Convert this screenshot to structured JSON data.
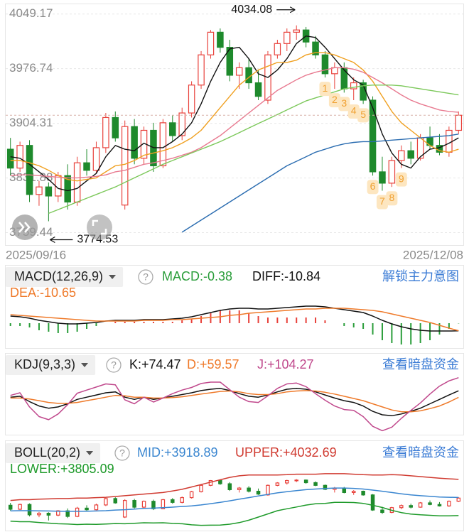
{
  "chart_data": [
    {
      "type": "candlestick",
      "categories": [
        "2025/09/16",
        null,
        null,
        null,
        null,
        null,
        null,
        null,
        null,
        null,
        null,
        null,
        null,
        null,
        null,
        null,
        null,
        null,
        null,
        null,
        null,
        null,
        null,
        null,
        null,
        null,
        null,
        null,
        null,
        null,
        null,
        null,
        null,
        null,
        null,
        null,
        null,
        null,
        null,
        null,
        null,
        null,
        null,
        null,
        null,
        null,
        null,
        "2025/12/08"
      ],
      "ylim": [
        3743,
        4063
      ],
      "yticks": [
        4049.17,
        3976.74,
        3904.31,
        3831.88,
        3759.44
      ],
      "grid": true,
      "up_color": "#e8403a",
      "down_color": "#1e8a2c",
      "open": [
        3870,
        3845,
        3875,
        3810,
        3820,
        3808,
        3835,
        3800,
        3852,
        3842,
        3872,
        3912,
        3796,
        3900,
        3858,
        3895,
        3848,
        3905,
        3888,
        3918,
        3955,
        3995,
        4025,
        4005,
        3968,
        3978,
        3958,
        3935,
        3995,
        4010,
        4025,
        4028,
        4012,
        3995,
        3970,
        3978,
        3950,
        3958,
        3935,
        3840,
        3825,
        3855,
        3868,
        3858,
        3885,
        3875,
        3866,
        3895
      ],
      "high": [
        3885,
        3880,
        3882,
        3828,
        3826,
        3840,
        3850,
        3860,
        3870,
        3880,
        3918,
        3920,
        3908,
        3910,
        3900,
        3905,
        3910,
        3915,
        3925,
        3960,
        4000,
        4028,
        4030,
        4015,
        3985,
        3990,
        3975,
        4000,
        4015,
        4030,
        4034.08,
        4032,
        4020,
        4000,
        3985,
        3985,
        3965,
        3962,
        3940,
        3860,
        3860,
        3875,
        3880,
        3890,
        3900,
        3890,
        3900,
        3920
      ],
      "low": [
        3835,
        3840,
        3800,
        3795,
        3774.53,
        3800,
        3790,
        3795,
        3835,
        3838,
        3865,
        3880,
        3790,
        3850,
        3850,
        3840,
        3845,
        3880,
        3882,
        3912,
        3950,
        3990,
        3998,
        3960,
        3950,
        3950,
        3935,
        3930,
        3990,
        4000,
        4015,
        4005,
        3990,
        3965,
        3950,
        3945,
        3935,
        3930,
        3835,
        3815,
        3820,
        3845,
        3850,
        3855,
        3870,
        3862,
        3860,
        3890
      ],
      "close": [
        3845,
        3875,
        3810,
        3820,
        3808,
        3835,
        3800,
        3852,
        3842,
        3872,
        3912,
        3885,
        3900,
        3858,
        3895,
        3848,
        3905,
        3888,
        3918,
        3955,
        3995,
        4025,
        4005,
        3968,
        3978,
        3958,
        3940,
        3995,
        4010,
        4025,
        4028,
        4012,
        3995,
        3970,
        3978,
        3950,
        3958,
        3935,
        3840,
        3825,
        3855,
        3868,
        3858,
        3885,
        3875,
        3866,
        3895,
        3915
      ],
      "lines": [
        {
          "color": "#111111",
          "values": [
            3860,
            3858,
            3850,
            3840,
            3830,
            3818,
            3815,
            3818,
            3828,
            3838,
            3860,
            3875,
            3870,
            3868,
            3878,
            3872,
            3872,
            3880,
            3890,
            3905,
            3930,
            3960,
            3985,
            4003,
            4005,
            3990,
            3970,
            3965,
            3975,
            3990,
            4010,
            4020,
            4018,
            4005,
            3990,
            3975,
            3962,
            3955,
            3925,
            3890,
            3865,
            3850,
            3845,
            3860,
            3870,
            3872,
            3878,
            3885
          ]
        },
        {
          "color": "#f0a020",
          "values": [
            3855,
            3855,
            3852,
            3848,
            3842,
            3835,
            3830,
            3828,
            3830,
            3832,
            3840,
            3848,
            3850,
            3855,
            3862,
            3865,
            3868,
            3872,
            3878,
            3885,
            3895,
            3910,
            3925,
            3940,
            3955,
            3965,
            3975,
            3980,
            3985,
            3985,
            3988,
            3995,
            3998,
            3998,
            3995,
            3990,
            3985,
            3975,
            3960,
            3940,
            3920,
            3905,
            3895,
            3885,
            3875,
            3868,
            3866,
            3870
          ]
        },
        {
          "color": "#e87a90",
          "values": [
            3835,
            3836,
            3836,
            3835,
            3834,
            3833,
            3832,
            3832,
            3833,
            3834,
            3836,
            3840,
            3842,
            3846,
            3850,
            3852,
            3855,
            3858,
            3862,
            3866,
            3872,
            3880,
            3888,
            3898,
            3908,
            3918,
            3928,
            3938,
            3948,
            3955,
            3962,
            3968,
            3972,
            3975,
            3978,
            3978,
            3976,
            3972,
            3965,
            3958,
            3950,
            3942,
            3935,
            3930,
            3926,
            3922,
            3920,
            3918.89
          ]
        },
        {
          "color": "#7cc85a",
          "values": [
            null,
            null,
            null,
            null,
            3785,
            3790,
            3795,
            3800,
            3805,
            3810,
            3815,
            3820,
            3826,
            3832,
            3838,
            3844,
            3850,
            3855,
            3860,
            3865,
            3870,
            3875,
            3880,
            3886,
            3892,
            3898,
            3904,
            3910,
            3916,
            3922,
            3928,
            3934,
            3938,
            3942,
            3946,
            3950,
            3952,
            3954,
            3955,
            3955,
            3955,
            3954,
            3952,
            3950,
            3948,
            3946,
            3944,
            3942
          ]
        },
        {
          "color": "#2a6cb0",
          "values": [
            null,
            null,
            null,
            null,
            null,
            null,
            null,
            null,
            null,
            null,
            null,
            null,
            null,
            null,
            null,
            null,
            null,
            null,
            3760,
            3768,
            3776,
            3784,
            3792,
            3800,
            3808,
            3816,
            3824,
            3832,
            3840,
            3848,
            3854,
            3860,
            3866,
            3870,
            3874,
            3877,
            3879,
            3880,
            3880,
            3881,
            3882,
            3883,
            3884,
            3885,
            3886,
            3887,
            3888,
            3890
          ]
        }
      ],
      "td_color": "#f0a030",
      "td_labels": [
        null,
        null,
        null,
        null,
        null,
        null,
        null,
        null,
        null,
        null,
        null,
        null,
        null,
        null,
        null,
        null,
        null,
        null,
        null,
        null,
        null,
        null,
        null,
        null,
        null,
        null,
        null,
        null,
        null,
        null,
        null,
        null,
        null,
        "1",
        "2",
        "3",
        "4",
        "5",
        "6",
        "7",
        "8",
        "9",
        null,
        null,
        null,
        null,
        null,
        null
      ]
    },
    {
      "type": "macd",
      "title": "MACD(12,26,9)",
      "help": "?",
      "link": "解锁主力意图",
      "ylim": [
        -35,
        55
      ],
      "series": [
        {
          "name": "MACD:-0.38",
          "color": "#2a9d3a",
          "up_color": "#e8403a",
          "style": "bar",
          "values": [
            -4,
            -4,
            -6,
            -10,
            -12,
            -14,
            -14,
            -12,
            -8,
            -4,
            0,
            2,
            2,
            2,
            2,
            2,
            2,
            2,
            4,
            6,
            10,
            14,
            18,
            18,
            18,
            14,
            10,
            8,
            8,
            8,
            8,
            8,
            8,
            4,
            0,
            -4,
            -6,
            -8,
            -16,
            -24,
            -28,
            -30,
            -30,
            -28,
            -24,
            -16,
            -8,
            -0.38
          ]
        },
        {
          "name": "DIFF:-10.84",
          "color": "#111111",
          "style": "line",
          "values": [
            10,
            9,
            7,
            4,
            2,
            0,
            -1,
            -1,
            0,
            1,
            3,
            4,
            4,
            4,
            5,
            5,
            5,
            6,
            7,
            9,
            12,
            15,
            18,
            20,
            21,
            21,
            20,
            20,
            21,
            22,
            23,
            24,
            24,
            23,
            21,
            19,
            17,
            15,
            10,
            4,
            -1,
            -5,
            -8,
            -10,
            -11,
            -11,
            -11,
            -10.84
          ]
        },
        {
          "name": "DEA:-10.65",
          "color": "#ef7a2a",
          "style": "line",
          "values": [
            12,
            11,
            10,
            9,
            8,
            7,
            6,
            5,
            4,
            3,
            3,
            3,
            3,
            3,
            4,
            4,
            4,
            5,
            5,
            6,
            7,
            8,
            9,
            11,
            12,
            14,
            15,
            16,
            17,
            18,
            19,
            20,
            20,
            21,
            21,
            21,
            20,
            19,
            18,
            16,
            13,
            10,
            7,
            4,
            1,
            -3,
            -7,
            -10.65
          ]
        }
      ]
    },
    {
      "type": "kdj",
      "title": "KDJ(9,3,3)",
      "help": "?",
      "link": "查看暗盘资金",
      "ylim": [
        -25,
        115
      ],
      "series": [
        {
          "name": "K:+74.47",
          "color": "#111111",
          "style": "line",
          "values": [
            60,
            62,
            50,
            40,
            35,
            38,
            45,
            55,
            60,
            65,
            70,
            72,
            60,
            55,
            60,
            55,
            58,
            62,
            66,
            70,
            75,
            78,
            80,
            75,
            68,
            62,
            60,
            65,
            72,
            78,
            80,
            78,
            72,
            65,
            58,
            52,
            48,
            40,
            28,
            20,
            18,
            22,
            28,
            35,
            45,
            55,
            65,
            74.47
          ]
        },
        {
          "name": "D:+59.57",
          "color": "#ef7a2a",
          "style": "line",
          "values": [
            58,
            58,
            56,
            52,
            48,
            46,
            46,
            48,
            52,
            56,
            60,
            64,
            63,
            60,
            60,
            58,
            58,
            59,
            61,
            64,
            67,
            70,
            73,
            74,
            72,
            68,
            66,
            66,
            68,
            72,
            74,
            75,
            74,
            71,
            67,
            62,
            57,
            52,
            45,
            38,
            31,
            27,
            27,
            29,
            34,
            40,
            49,
            59.57
          ]
        },
        {
          "name": "J:+104.27",
          "color": "#c0488c",
          "style": "line",
          "values": [
            64,
            70,
            38,
            16,
            9,
            22,
            43,
            69,
            76,
            83,
            90,
            88,
            54,
            45,
            60,
            49,
            58,
            68,
            76,
            82,
            91,
            94,
            94,
            77,
            60,
            50,
            48,
            63,
            80,
            90,
            92,
            84,
            68,
            53,
            40,
            32,
            30,
            16,
            -6,
            -16,
            -8,
            12,
            30,
            47,
            67,
            85,
            97,
            104.27
          ]
        }
      ]
    },
    {
      "type": "boll",
      "title": "BOLL(20,2)",
      "help": "?",
      "link": "查看暗盘资金",
      "ylim": [
        3720,
        4090
      ],
      "series": [
        {
          "name": "MID:+3918.89",
          "color": "#3a86d0",
          "style": "line",
          "values": [
            3835,
            3836,
            3836,
            3835,
            3834,
            3833,
            3832,
            3832,
            3833,
            3834,
            3836,
            3840,
            3842,
            3846,
            3850,
            3852,
            3855,
            3858,
            3862,
            3866,
            3872,
            3880,
            3888,
            3898,
            3908,
            3918,
            3928,
            3938,
            3948,
            3955,
            3962,
            3968,
            3972,
            3975,
            3978,
            3978,
            3976,
            3972,
            3965,
            3958,
            3950,
            3942,
            3935,
            3930,
            3926,
            3922,
            3920,
            3918.89
          ]
        },
        {
          "name": "UPPER:+4032.69",
          "color": "#d03a30",
          "style": "line",
          "values": [
            3900,
            3905,
            3905,
            3908,
            3910,
            3912,
            3912,
            3915,
            3915,
            3918,
            3920,
            3925,
            3930,
            3935,
            3940,
            3945,
            3950,
            3960,
            3970,
            3985,
            4000,
            4015,
            4030,
            4045,
            4055,
            4060,
            4060,
            4060,
            4060,
            4062,
            4065,
            4065,
            4065,
            4068,
            4068,
            4068,
            4065,
            4062,
            4060,
            4060,
            4062,
            4060,
            4055,
            4050,
            4045,
            4040,
            4036,
            4032.69
          ]
        },
        {
          "name": "LOWER:+3805.09",
          "color": "#1e9a2a",
          "style": "line",
          "values": [
            3770,
            3767,
            3767,
            3762,
            3758,
            3754,
            3752,
            3749,
            3751,
            3750,
            3752,
            3755,
            3754,
            3757,
            3760,
            3759,
            3760,
            3756,
            3754,
            3747,
            3744,
            3745,
            3746,
            3751,
            3761,
            3776,
            3796,
            3816,
            3836,
            3848,
            3859,
            3871,
            3879,
            3882,
            3888,
            3888,
            3887,
            3882,
            3870,
            3856,
            3838,
            3824,
            3815,
            3810,
            3807,
            3804,
            3804,
            3805.09
          ]
        }
      ]
    }
  ]
}
